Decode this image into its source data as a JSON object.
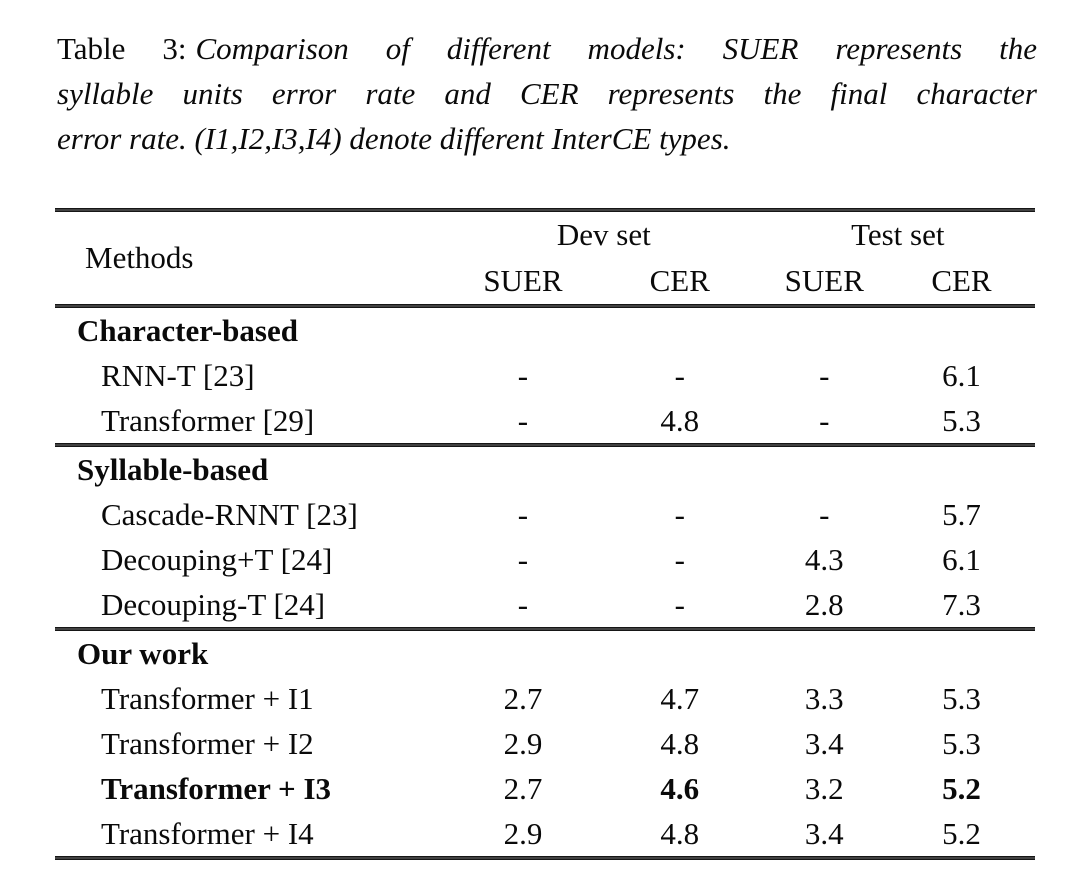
{
  "caption": {
    "label": "Table 3:",
    "line1": "Comparison of different models: SUER represents the",
    "line2": "syllable units error rate and CER represents the final character",
    "line3": "error rate. (I1,I2,I3,I4) denote different InterCE types."
  },
  "table": {
    "methods_header": "Methods",
    "group_headers": [
      "Dev set",
      "Test set"
    ],
    "col_headers": [
      "SUER",
      "CER",
      "SUER",
      "CER"
    ],
    "sections": [
      {
        "title": "Character-based",
        "rows": [
          {
            "method": "RNN-T [23]",
            "values": [
              "-",
              "-",
              "-",
              "6.1"
            ]
          },
          {
            "method": "Transformer [29]",
            "values": [
              "-",
              "4.8",
              "-",
              "5.3"
            ]
          }
        ]
      },
      {
        "title": "Syllable-based",
        "rows": [
          {
            "method": "Cascade-RNNT [23]",
            "values": [
              "-",
              "-",
              "-",
              "5.7"
            ]
          },
          {
            "method": "Decouping+T [24]",
            "values": [
              "-",
              "-",
              "4.3",
              "6.1"
            ]
          },
          {
            "method": "Decouping-T [24]",
            "values": [
              "-",
              "-",
              "2.8",
              "7.3"
            ]
          }
        ]
      },
      {
        "title": "Our work",
        "rows": [
          {
            "method": "Transformer + I1",
            "values": [
              "2.7",
              "4.7",
              "3.3",
              "5.3"
            ]
          },
          {
            "method": "Transformer + I2",
            "values": [
              "2.9",
              "4.8",
              "3.4",
              "5.3"
            ]
          },
          {
            "method": "Transformer + I3",
            "values": [
              "2.7",
              "4.6",
              "3.2",
              "5.2"
            ]
          },
          {
            "method": "Transformer + I4",
            "values": [
              "2.9",
              "4.8",
              "3.4",
              "5.2"
            ]
          }
        ]
      }
    ]
  }
}
